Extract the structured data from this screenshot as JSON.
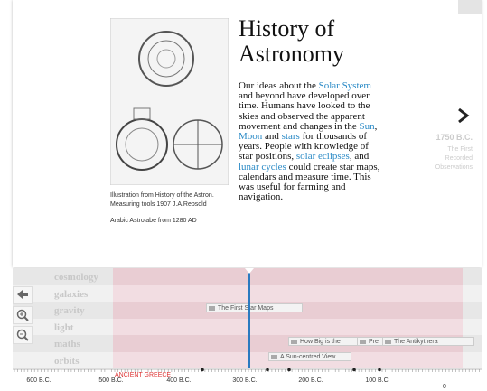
{
  "header": {
    "title": "History of Astronomy"
  },
  "image": {
    "caption": "Illustration from History of the Astron. Measuring tools 1907 J.A.Repsold",
    "subcaption": "Arabic Astrolabe from 1280 AD"
  },
  "body": [
    {
      "text": "Our ideas about the "
    },
    {
      "text": "Solar System",
      "link": true
    },
    {
      "text": " and beyond have developed over time. Humans have looked to the skies and observed the apparent movement and changes in the "
    },
    {
      "text": "Sun",
      "link": true
    },
    {
      "text": ", "
    },
    {
      "text": "Moon",
      "link": true
    },
    {
      "text": " and "
    },
    {
      "text": "stars",
      "link": true
    },
    {
      "text": " for thousands of years. People with knowledge of star positions, "
    },
    {
      "text": "solar eclipses",
      "link": true
    },
    {
      "text": ", and "
    },
    {
      "text": "lunar cycles",
      "link": true
    },
    {
      "text": " could create star maps, calendars and measure time. This was useful for farming and navigation."
    }
  ],
  "next": {
    "date": "1750 B.C.",
    "label": "The First Recorded Observations"
  },
  "timeline": {
    "rows": [
      "cosmology",
      "galaxies",
      "gravity",
      "light",
      "maths",
      "orbits"
    ],
    "events": [
      "The First Star Maps",
      "How Big is the",
      "Pre",
      "The Antikythera",
      "A Sun-centred View"
    ],
    "era": "ANCIENT GREECE",
    "axis": [
      "600 B.C.",
      "500 B.C.",
      "400 B.C.",
      "300 B.C.",
      "200 B.C.",
      "100 B.C.",
      "0"
    ]
  }
}
